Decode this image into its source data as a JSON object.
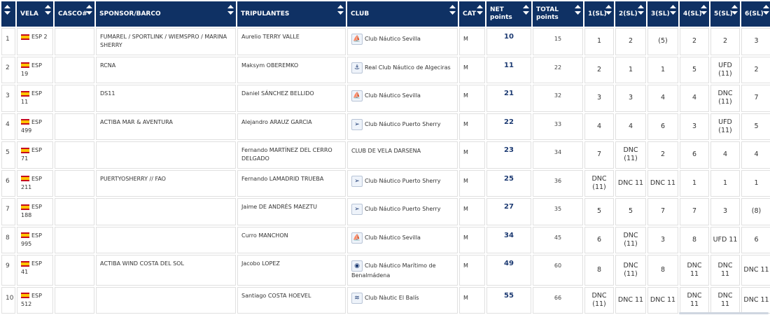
{
  "headers": {
    "sort_icon": "sort-up-down-icon",
    "columns": [
      "",
      "VELA",
      "CASCO#",
      "SPONSOR/BARCO",
      "TRIPULANTES",
      "CLUB",
      "CAT",
      "NET points",
      "TOTAL points",
      "1(SL)",
      "2(SL)",
      "3(SL)",
      "4(SL)",
      "5(SL)",
      "6(SL)"
    ]
  },
  "colors": {
    "header_bg": "#0f3164",
    "header_text": "#ffffff",
    "net_text": "#1c3a72",
    "border": "#e0e0e0"
  },
  "rows": [
    {
      "rank": "1",
      "vela": "ESP 2",
      "casco": "",
      "sponsor": "FUMAREL / SPORTLINK / WIEMSPRO / MARINA SHERRY",
      "crew": "Aurelio TERRY VALLE",
      "club": "Club Náutico Sevilla",
      "club_icon": "club-nautico-sevilla-logo",
      "cat": "M",
      "net": "10",
      "total": "15",
      "r": [
        "1",
        "2",
        "(5)",
        "2",
        "2",
        "3"
      ]
    },
    {
      "rank": "2",
      "vela": "ESP 19",
      "casco": "",
      "sponsor": "RCNA",
      "crew": "Maksym OBEREMKO",
      "club": "Real Club Náutico de Algeciras",
      "club_icon": "real-club-nautico-algeciras-logo",
      "cat": "M",
      "net": "11",
      "total": "22",
      "r": [
        "2",
        "1",
        "1",
        "5",
        "UFD (11)",
        "2"
      ]
    },
    {
      "rank": "3",
      "vela": "ESP 11",
      "casco": "",
      "sponsor": "DS11",
      "crew": "Daniel SÁNCHEZ BELLIDO",
      "club": "Club Náutico Sevilla",
      "club_icon": "club-nautico-sevilla-logo",
      "cat": "M",
      "net": "21",
      "total": "32",
      "r": [
        "3",
        "3",
        "4",
        "4",
        "DNC (11)",
        "7"
      ]
    },
    {
      "rank": "4",
      "vela": "ESP 499",
      "casco": "",
      "sponsor": "ACTIBA MAR & AVENTURA",
      "crew": "Alejandro ARAUZ GARCIA",
      "club": "Club Náutico Puerto Sherry",
      "club_icon": "club-nautico-puerto-sherry-logo",
      "cat": "M",
      "net": "22",
      "total": "33",
      "r": [
        "4",
        "4",
        "6",
        "3",
        "UFD (11)",
        "5"
      ]
    },
    {
      "rank": "5",
      "vela": "ESP 71",
      "casco": "",
      "sponsor": "",
      "crew": "Fernando MARTÍNEZ DEL CERRO DELGADO",
      "club": "CLUB DE VELA DARSENA",
      "club_icon": "",
      "cat": "M",
      "net": "23",
      "total": "34",
      "r": [
        "7",
        "DNC (11)",
        "2",
        "6",
        "4",
        "4"
      ]
    },
    {
      "rank": "6",
      "vela": "ESP 211",
      "casco": "",
      "sponsor": "PUERTYOSHERRY // FAO",
      "crew": "Fernando LAMADRID TRUEBA",
      "club": "Club Náutico Puerto Sherry",
      "club_icon": "club-nautico-puerto-sherry-logo",
      "cat": "M",
      "net": "25",
      "total": "36",
      "r": [
        "DNC (11)",
        "DNC 11",
        "DNC 11",
        "1",
        "1",
        "1"
      ]
    },
    {
      "rank": "7",
      "vela": "ESP 188",
      "casco": "",
      "sponsor": "",
      "crew": "Jaime DE ANDRÉS MAEZTU",
      "club": "Club Náutico Puerto Sherry",
      "club_icon": "club-nautico-puerto-sherry-logo",
      "cat": "M",
      "net": "27",
      "total": "35",
      "r": [
        "5",
        "5",
        "7",
        "7",
        "3",
        "(8)"
      ]
    },
    {
      "rank": "8",
      "vela": "ESP 995",
      "casco": "",
      "sponsor": "",
      "crew": "Curro MANCHON",
      "club": "Club Náutico Sevilla",
      "club_icon": "club-nautico-sevilla-logo",
      "cat": "M",
      "net": "34",
      "total": "45",
      "r": [
        "6",
        "DNC (11)",
        "3",
        "8",
        "UFD 11",
        "6"
      ]
    },
    {
      "rank": "9",
      "vela": "ESP 41",
      "casco": "",
      "sponsor": "ACTIBA WIND COSTA DEL SOL",
      "crew": "Jacobo LOPEZ",
      "club": "Club Náutico Marítimo de Benalmádena",
      "club_icon": "club-nautico-maritimo-benalmadena-logo",
      "cat": "M",
      "net": "49",
      "total": "60",
      "r": [
        "8",
        "DNC (11)",
        "8",
        "DNC 11",
        "DNC 11",
        "DNC 11"
      ]
    },
    {
      "rank": "10",
      "vela": "ESP 512",
      "casco": "",
      "sponsor": "",
      "crew": "Santiago COSTA HOEVEL",
      "club": "Club Nàutic El Balís",
      "club_icon": "club-nautic-el-balis-logo",
      "cat": "M",
      "net": "55",
      "total": "66",
      "r": [
        "DNC (11)",
        "DNC 11",
        "DNC 11",
        "DNC 11",
        "DNC 11",
        "DNC 11"
      ]
    }
  ]
}
